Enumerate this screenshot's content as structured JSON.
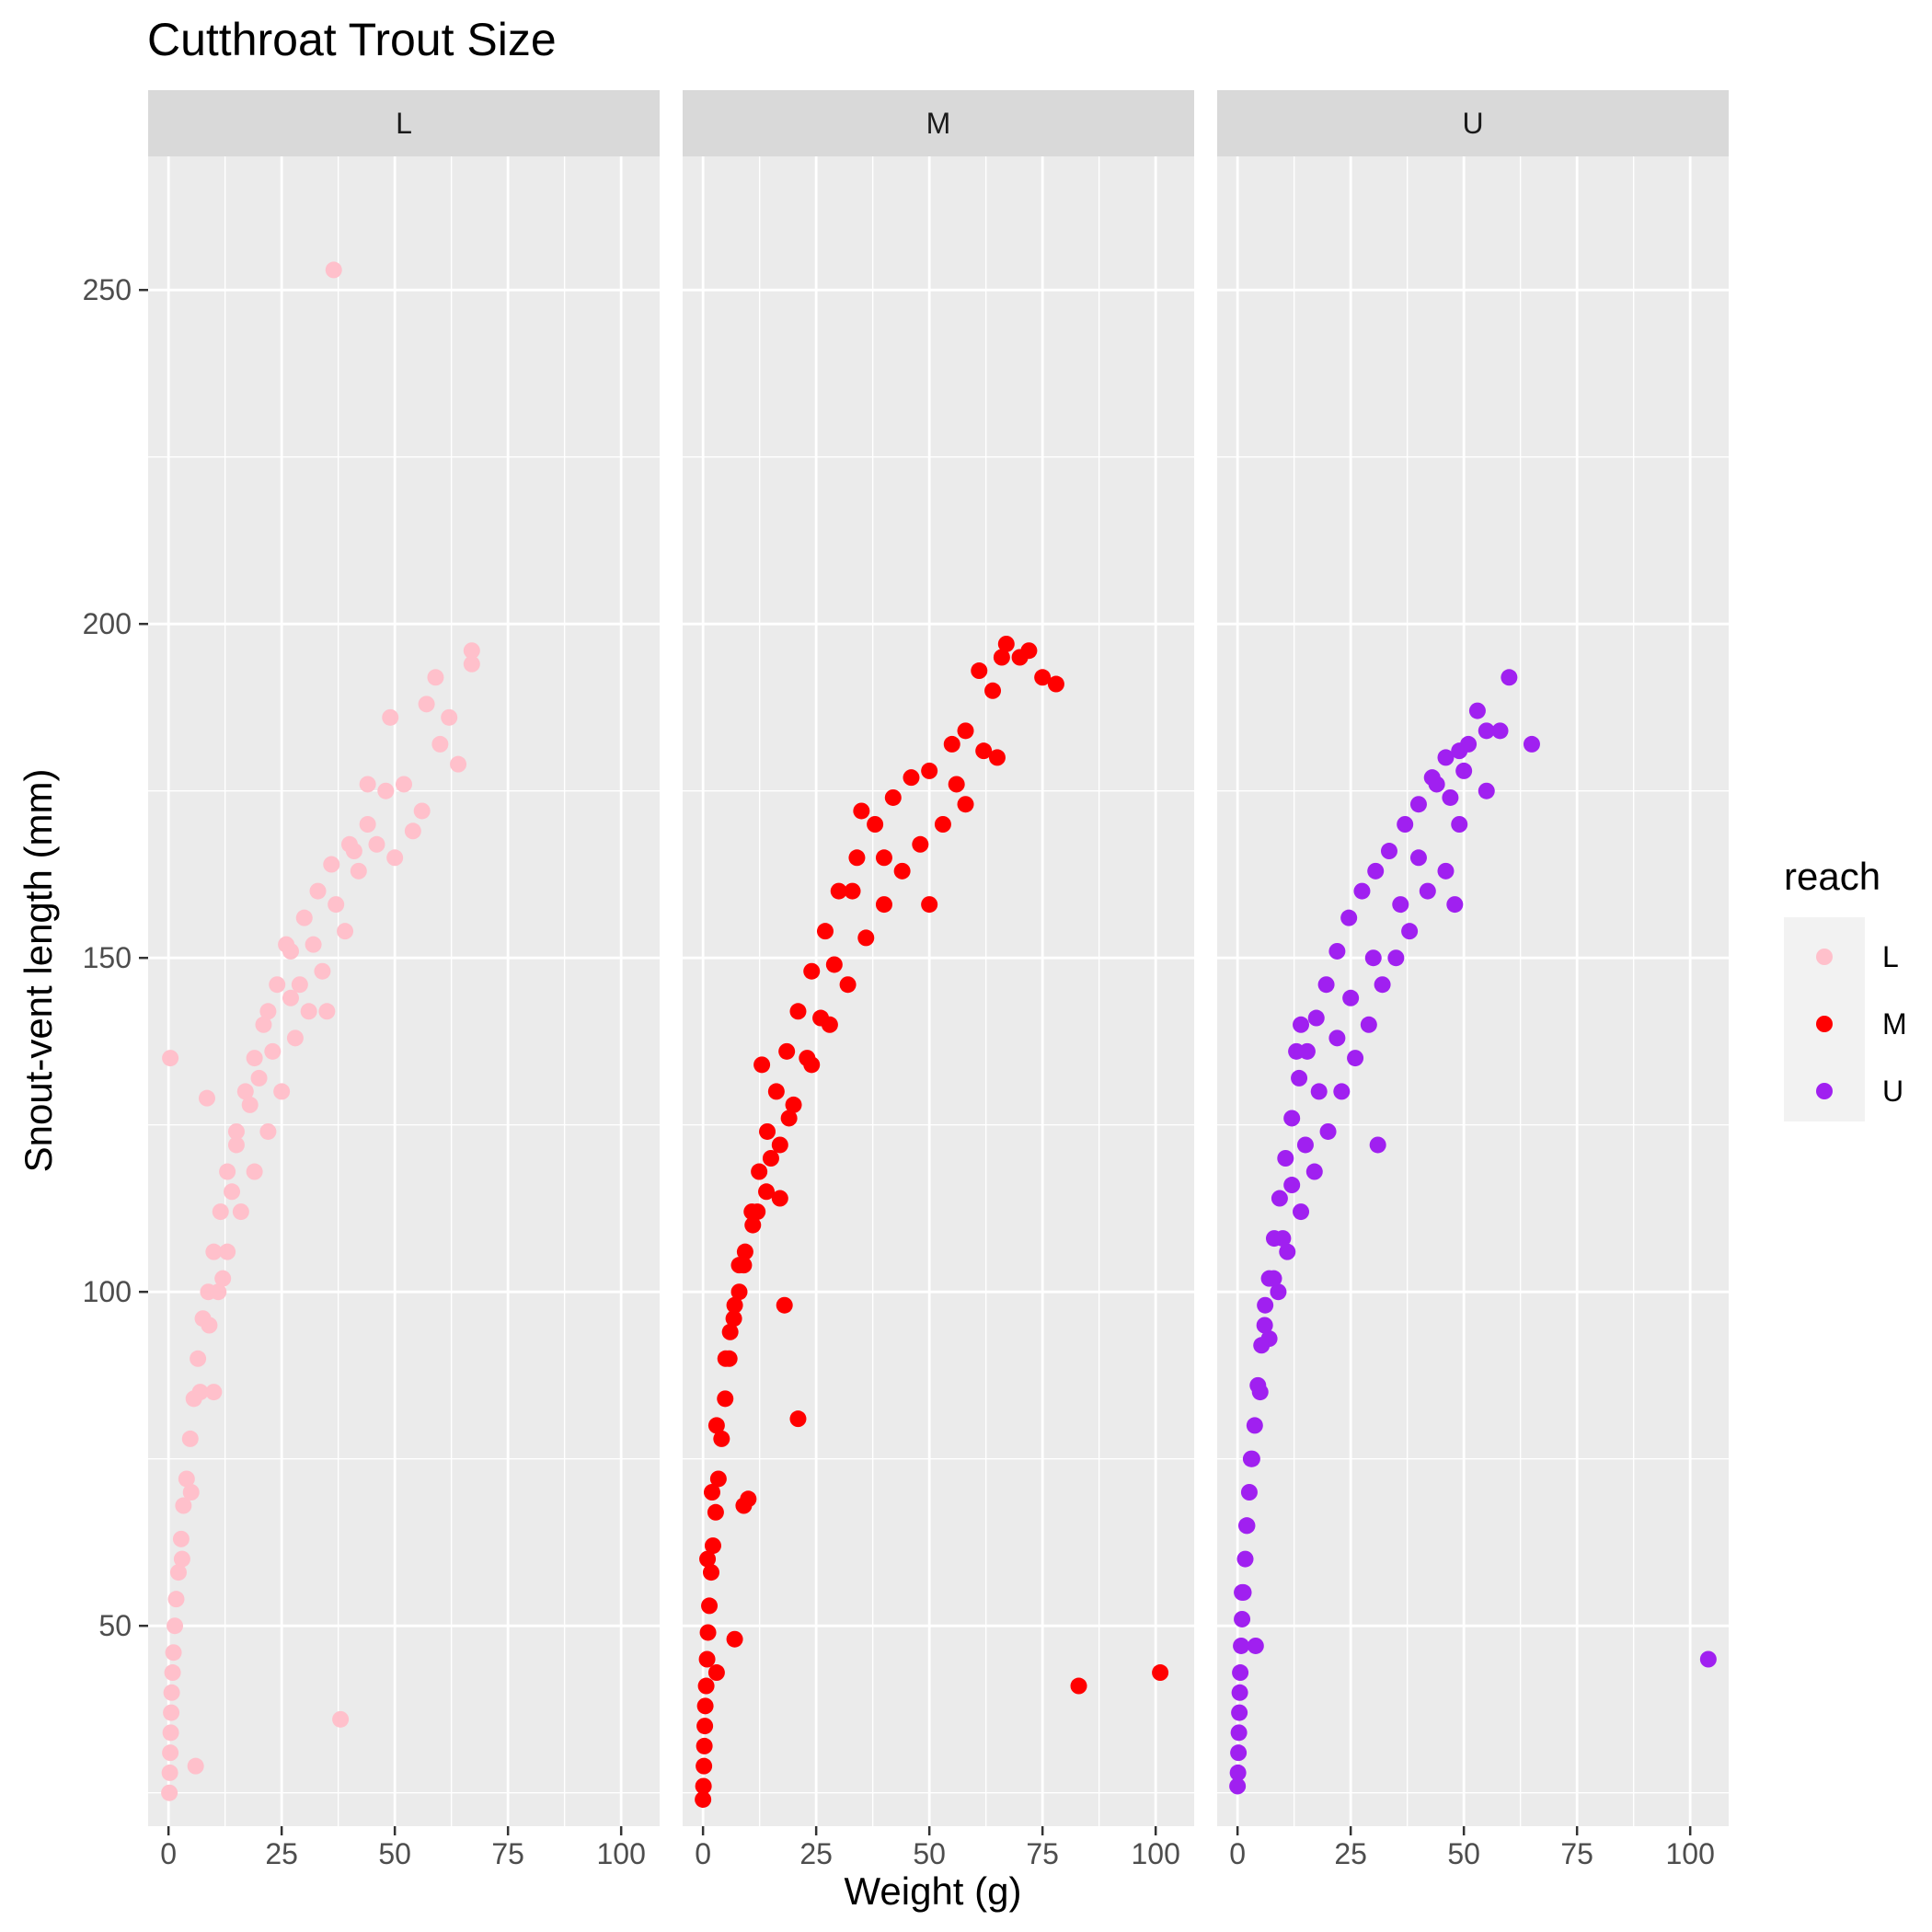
{
  "chart_data": {
    "type": "scatter",
    "title": "Cutthroat Trout Size",
    "xlabel": "Weight (g)",
    "ylabel": "Snout-vent length (mm)",
    "xlim": [
      -4.5,
      108.5
    ],
    "ylim": [
      20,
      270
    ],
    "x_ticks": [
      0,
      25,
      50,
      75,
      100
    ],
    "y_ticks": [
      50,
      100,
      150,
      200,
      250
    ],
    "grid": true,
    "facet_by": "reach",
    "legend": {
      "title": "reach",
      "position": "right",
      "entries": [
        "L",
        "M",
        "U"
      ]
    },
    "series": [
      {
        "name": "L",
        "color": "#FFC0CB",
        "points": [
          [
            0.2,
            25
          ],
          [
            0.3,
            28
          ],
          [
            0.4,
            31
          ],
          [
            0.5,
            34
          ],
          [
            0.6,
            37
          ],
          [
            0.7,
            40
          ],
          [
            0.9,
            43
          ],
          [
            1.1,
            46
          ],
          [
            1.4,
            50
          ],
          [
            1.7,
            54
          ],
          [
            2.2,
            58
          ],
          [
            2.8,
            63
          ],
          [
            3.3,
            68
          ],
          [
            4,
            72
          ],
          [
            4.8,
            78
          ],
          [
            5.6,
            84
          ],
          [
            6.5,
            90
          ],
          [
            7.6,
            96
          ],
          [
            8.8,
            100
          ],
          [
            10,
            106
          ],
          [
            11.5,
            112
          ],
          [
            13,
            118
          ],
          [
            15,
            124
          ],
          [
            17,
            130
          ],
          [
            19,
            135
          ],
          [
            21,
            140
          ],
          [
            24,
            146
          ],
          [
            27,
            151
          ],
          [
            30,
            156
          ],
          [
            33,
            160
          ],
          [
            36,
            164
          ],
          [
            40,
            167
          ],
          [
            44,
            170
          ],
          [
            48,
            175
          ],
          [
            52,
            176
          ],
          [
            56,
            172
          ],
          [
            60,
            182
          ],
          [
            64,
            179
          ],
          [
            67,
            196
          ],
          [
            67,
            194
          ],
          [
            59,
            192
          ],
          [
            62,
            186
          ],
          [
            57,
            188
          ],
          [
            49,
            186
          ],
          [
            44,
            176
          ],
          [
            41,
            166
          ],
          [
            37,
            158
          ],
          [
            34,
            148
          ],
          [
            31,
            142
          ],
          [
            28,
            138
          ],
          [
            25,
            130
          ],
          [
            22,
            124
          ],
          [
            19,
            118
          ],
          [
            16,
            112
          ],
          [
            13,
            106
          ],
          [
            11,
            100
          ],
          [
            9,
            95
          ],
          [
            7,
            85
          ],
          [
            5,
            70
          ],
          [
            3,
            60
          ],
          [
            0.4,
            135
          ],
          [
            8.5,
            129
          ],
          [
            36.5,
            253
          ],
          [
            38,
            36
          ],
          [
            6,
            29
          ],
          [
            26,
            152
          ],
          [
            22,
            142
          ],
          [
            46,
            167
          ],
          [
            50,
            165
          ],
          [
            54,
            169
          ],
          [
            39,
            154
          ],
          [
            35,
            142
          ],
          [
            20,
            132
          ],
          [
            14,
            115
          ],
          [
            12,
            102
          ],
          [
            10,
            85
          ],
          [
            15,
            122
          ],
          [
            18,
            128
          ],
          [
            23,
            136
          ],
          [
            29,
            146
          ],
          [
            32,
            152
          ],
          [
            42,
            163
          ],
          [
            27,
            144
          ]
        ]
      },
      {
        "name": "M",
        "color": "#FF0000",
        "points": [
          [
            0,
            24
          ],
          [
            0.1,
            26
          ],
          [
            0.2,
            29
          ],
          [
            0.3,
            32
          ],
          [
            0.4,
            35
          ],
          [
            0.5,
            38
          ],
          [
            0.7,
            41
          ],
          [
            0.9,
            45
          ],
          [
            1.1,
            49
          ],
          [
            1.4,
            53
          ],
          [
            1.8,
            58
          ],
          [
            2.2,
            62
          ],
          [
            2.8,
            67
          ],
          [
            3.4,
            72
          ],
          [
            4.1,
            78
          ],
          [
            4.9,
            84
          ],
          [
            5.8,
            90
          ],
          [
            6.8,
            96
          ],
          [
            8,
            100
          ],
          [
            9.3,
            106
          ],
          [
            10.8,
            112
          ],
          [
            12.4,
            118
          ],
          [
            14.2,
            124
          ],
          [
            16.2,
            130
          ],
          [
            18.5,
            136
          ],
          [
            21,
            142
          ],
          [
            24,
            148
          ],
          [
            27,
            154
          ],
          [
            30,
            160
          ],
          [
            34,
            165
          ],
          [
            38,
            170
          ],
          [
            42,
            174
          ],
          [
            46,
            177
          ],
          [
            50,
            178
          ],
          [
            55,
            182
          ],
          [
            58,
            184
          ],
          [
            61,
            193
          ],
          [
            64,
            190
          ],
          [
            66,
            195
          ],
          [
            67,
            197
          ],
          [
            70,
            195
          ],
          [
            72,
            196
          ],
          [
            75,
            192
          ],
          [
            78,
            191
          ],
          [
            65,
            180
          ],
          [
            62,
            181
          ],
          [
            58,
            173
          ],
          [
            53,
            170
          ],
          [
            48,
            167
          ],
          [
            44,
            163
          ],
          [
            40,
            158
          ],
          [
            36,
            153
          ],
          [
            32,
            146
          ],
          [
            28,
            140
          ],
          [
            24,
            134
          ],
          [
            20,
            128
          ],
          [
            17,
            122
          ],
          [
            14,
            115
          ],
          [
            11,
            110
          ],
          [
            9,
            104
          ],
          [
            7,
            98
          ],
          [
            5,
            90
          ],
          [
            3,
            80
          ],
          [
            2,
            70
          ],
          [
            1,
            60
          ],
          [
            17,
            114
          ],
          [
            18,
            98
          ],
          [
            21,
            81
          ],
          [
            13,
            134
          ],
          [
            10,
            69
          ],
          [
            9,
            68
          ],
          [
            7,
            48
          ],
          [
            3,
            43
          ],
          [
            83,
            41
          ],
          [
            101,
            43
          ],
          [
            50,
            158
          ],
          [
            56,
            176
          ],
          [
            40,
            165
          ],
          [
            35,
            172
          ],
          [
            33,
            160
          ],
          [
            29,
            149
          ],
          [
            26,
            141
          ],
          [
            23,
            135
          ],
          [
            19,
            126
          ],
          [
            15,
            120
          ],
          [
            12,
            112
          ],
          [
            8,
            104
          ],
          [
            6,
            94
          ]
        ]
      },
      {
        "name": "U",
        "color": "#A020F0",
        "points": [
          [
            0,
            26
          ],
          [
            0.1,
            28
          ],
          [
            0.2,
            31
          ],
          [
            0.3,
            34
          ],
          [
            0.4,
            37
          ],
          [
            0.5,
            40
          ],
          [
            0.6,
            43
          ],
          [
            0.8,
            47
          ],
          [
            1,
            51
          ],
          [
            1.3,
            55
          ],
          [
            1.7,
            60
          ],
          [
            2.1,
            65
          ],
          [
            2.6,
            70
          ],
          [
            3.2,
            75
          ],
          [
            3.8,
            80
          ],
          [
            4.5,
            86
          ],
          [
            5.3,
            92
          ],
          [
            6.1,
            98
          ],
          [
            7,
            102
          ],
          [
            8.1,
            108
          ],
          [
            9.3,
            114
          ],
          [
            10.6,
            120
          ],
          [
            12,
            126
          ],
          [
            13.6,
            132
          ],
          [
            15.4,
            136
          ],
          [
            17.4,
            141
          ],
          [
            19.6,
            146
          ],
          [
            22,
            151
          ],
          [
            24.6,
            156
          ],
          [
            27.5,
            160
          ],
          [
            30.5,
            163
          ],
          [
            33.5,
            166
          ],
          [
            37,
            170
          ],
          [
            40,
            173
          ],
          [
            43,
            177
          ],
          [
            46,
            180
          ],
          [
            49,
            181
          ],
          [
            51,
            182
          ],
          [
            53,
            187
          ],
          [
            55,
            184
          ],
          [
            58,
            184
          ],
          [
            60,
            192
          ],
          [
            65,
            182
          ],
          [
            55,
            175
          ],
          [
            49,
            170
          ],
          [
            46,
            163
          ],
          [
            48,
            158
          ],
          [
            42,
            160
          ],
          [
            38,
            154
          ],
          [
            35,
            150
          ],
          [
            32,
            146
          ],
          [
            29,
            140
          ],
          [
            26,
            135
          ],
          [
            23,
            130
          ],
          [
            20,
            124
          ],
          [
            17,
            118
          ],
          [
            14,
            112
          ],
          [
            11,
            106
          ],
          [
            9,
            100
          ],
          [
            7,
            93
          ],
          [
            5,
            85
          ],
          [
            3,
            75
          ],
          [
            2,
            65
          ],
          [
            1,
            55
          ],
          [
            14,
            140
          ],
          [
            13,
            136
          ],
          [
            31,
            122
          ],
          [
            4,
            47
          ],
          [
            104,
            45
          ],
          [
            44,
            176
          ],
          [
            50,
            178
          ],
          [
            47,
            174
          ],
          [
            40,
            165
          ],
          [
            36,
            158
          ],
          [
            30,
            150
          ],
          [
            25,
            144
          ],
          [
            22,
            138
          ],
          [
            18,
            130
          ],
          [
            15,
            122
          ],
          [
            12,
            116
          ],
          [
            10,
            108
          ],
          [
            8,
            102
          ],
          [
            6,
            95
          ]
        ]
      }
    ]
  }
}
